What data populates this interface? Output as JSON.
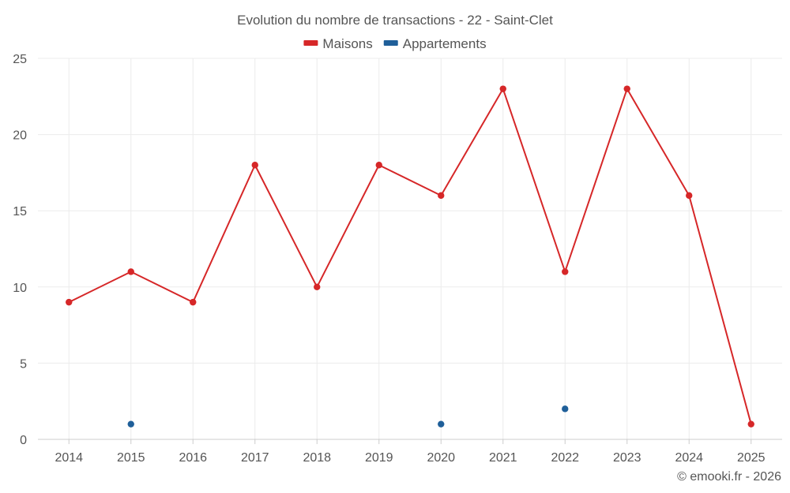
{
  "chart_data": {
    "type": "line",
    "title": "Evolution du nombre de transactions - 22 - Saint-Clet",
    "x": [
      "2014",
      "2015",
      "2016",
      "2017",
      "2018",
      "2019",
      "2020",
      "2021",
      "2022",
      "2023",
      "2024",
      "2025"
    ],
    "ylim": [
      0,
      25
    ],
    "yticks": [
      0,
      5,
      10,
      15,
      20,
      25
    ],
    "grid": true,
    "legend_position": "top-center",
    "series": [
      {
        "name": "Maisons",
        "color": "#d62728",
        "line": true,
        "values": [
          9,
          11,
          9,
          18,
          10,
          18,
          16,
          23,
          11,
          23,
          16,
          1
        ]
      },
      {
        "name": "Appartements",
        "color": "#1f5f99",
        "line": false,
        "values": [
          null,
          1,
          null,
          null,
          null,
          null,
          1,
          null,
          2,
          null,
          null,
          null
        ]
      }
    ]
  },
  "credit": "© emooki.fr - 2026"
}
